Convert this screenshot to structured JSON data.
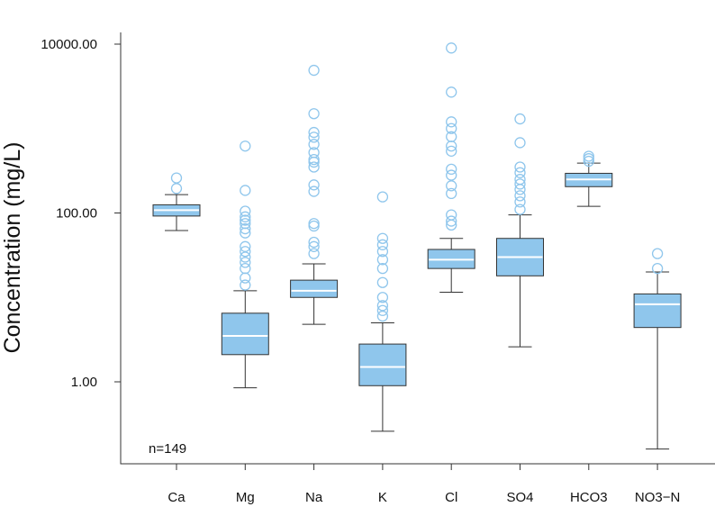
{
  "chart_data": {
    "type": "boxplot",
    "title": "",
    "xlabel": "",
    "ylabel": "Concentration (mg/L)",
    "yscale": "log10",
    "ylim": [
      0.1,
      15000
    ],
    "yticks": [
      {
        "value": 1,
        "label": "1.00"
      },
      {
        "value": 100,
        "label": "100.00"
      },
      {
        "value": 10000,
        "label": "10000.00"
      }
    ],
    "annotation": "n=149",
    "colors": {
      "box": "#8fc6ec",
      "median": "#ffffff",
      "outline": "#333333"
    },
    "categories": [
      "Ca",
      "Mg",
      "Na",
      "K",
      "Cl",
      "SO4",
      "HCO3",
      "NO3−N"
    ],
    "series": [
      {
        "name": "Ca",
        "whisker_low": 62,
        "q1": 92,
        "median": 108,
        "q3": 125,
        "whisker_high": 165,
        "outliers": [
          195,
          260
        ]
      },
      {
        "name": "Mg",
        "whisker_low": 0.85,
        "q1": 2.1,
        "median": 3.5,
        "q3": 6.5,
        "whisker_high": 12,
        "outliers": [
          14,
          17,
          22,
          26,
          30,
          35,
          40,
          58,
          65,
          75,
          82,
          90,
          105,
          185,
          620
        ]
      },
      {
        "name": "Na",
        "whisker_low": 4.8,
        "q1": 10,
        "median": 12,
        "q3": 16,
        "whisker_high": 25,
        "outliers": [
          33,
          40,
          45,
          70,
          75,
          180,
          215,
          350,
          400,
          430,
          520,
          650,
          790,
          900,
          1500,
          4900
        ]
      },
      {
        "name": "K",
        "whisker_low": 0.26,
        "q1": 0.9,
        "median": 1.5,
        "q3": 2.8,
        "whisker_high": 5,
        "outliers": [
          6,
          7,
          8,
          10,
          15,
          22,
          28,
          35,
          42,
          50,
          155
        ]
      },
      {
        "name": "Cl",
        "whisker_low": 11.5,
        "q1": 22,
        "median": 28,
        "q3": 37,
        "whisker_high": 50,
        "outliers": [
          72,
          80,
          95,
          170,
          210,
          280,
          330,
          540,
          620,
          800,
          1000,
          1200,
          2700,
          9000
        ]
      },
      {
        "name": "SO4",
        "whisker_low": 2.6,
        "q1": 18,
        "median": 30,
        "q3": 50,
        "whisker_high": 95,
        "outliers": [
          110,
          135,
          160,
          190,
          220,
          250,
          300,
          350,
          680,
          1300
        ]
      },
      {
        "name": "HCO3",
        "whisker_low": 120,
        "q1": 205,
        "median": 250,
        "q3": 295,
        "whisker_high": 390,
        "outliers": [
          410,
          440,
          470
        ]
      },
      {
        "name": "NO3−N",
        "whisker_low": 0.16,
        "q1": 4.4,
        "median": 8.3,
        "q3": 11,
        "whisker_high": 20,
        "outliers": [
          22,
          33
        ]
      }
    ]
  }
}
